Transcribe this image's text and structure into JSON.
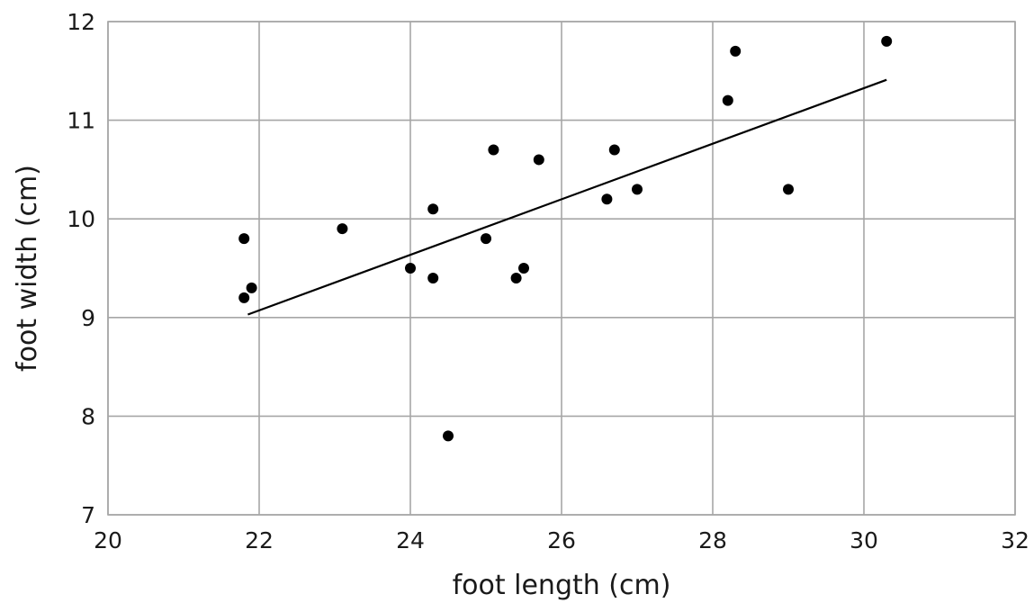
{
  "chart_data": {
    "type": "scatter",
    "title": "",
    "xlabel": "foot length (cm)",
    "ylabel": "foot width (cm)",
    "xlim": [
      20,
      32
    ],
    "ylim": [
      7,
      12
    ],
    "xticks": [
      20,
      22,
      24,
      26,
      28,
      30,
      32
    ],
    "yticks": [
      7,
      8,
      9,
      10,
      11,
      12
    ],
    "grid": true,
    "legend": "none",
    "series": [
      {
        "points": [
          {
            "x": 21.8,
            "y": 9.8
          },
          {
            "x": 21.8,
            "y": 9.2
          },
          {
            "x": 21.9,
            "y": 9.3
          },
          {
            "x": 23.1,
            "y": 9.9
          },
          {
            "x": 24.0,
            "y": 9.5
          },
          {
            "x": 24.3,
            "y": 10.1
          },
          {
            "x": 24.3,
            "y": 9.4
          },
          {
            "x": 24.5,
            "y": 7.8
          },
          {
            "x": 25.0,
            "y": 9.8
          },
          {
            "x": 25.1,
            "y": 10.7
          },
          {
            "x": 25.4,
            "y": 9.4
          },
          {
            "x": 25.5,
            "y": 9.5
          },
          {
            "x": 25.7,
            "y": 10.6
          },
          {
            "x": 26.6,
            "y": 10.2
          },
          {
            "x": 26.7,
            "y": 10.7
          },
          {
            "x": 27.0,
            "y": 10.3
          },
          {
            "x": 28.2,
            "y": 11.2
          },
          {
            "x": 28.3,
            "y": 11.7
          },
          {
            "x": 29.0,
            "y": 10.3
          },
          {
            "x": 30.3,
            "y": 11.8
          }
        ]
      }
    ],
    "fit_line": {
      "x": [
        21.85,
        30.3
      ],
      "y": [
        9.03,
        11.41
      ]
    },
    "colors": {
      "points": "#000000",
      "line": "#000000",
      "grid": "#a6a6a6"
    }
  }
}
